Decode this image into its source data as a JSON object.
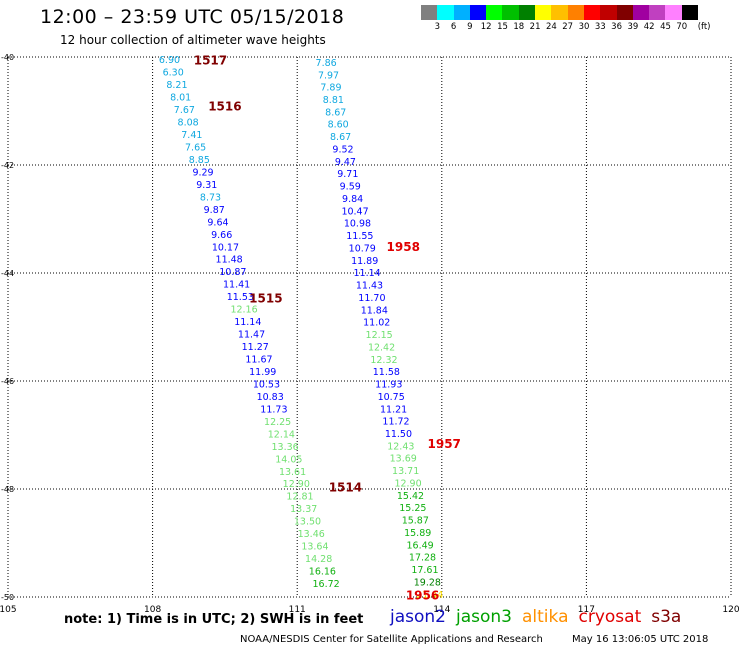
{
  "header": {
    "title": "12:00 – 23:59 UTC 05/15/2018",
    "subtitle": "12 hour collection of altimeter wave heights"
  },
  "colorbar": {
    "unit": "(ft)",
    "colors": [
      "#808080",
      "#00ffff",
      "#00b0ff",
      "#0000ff",
      "#00ff00",
      "#00c000",
      "#008000",
      "#ffff00",
      "#ffc000",
      "#ff8000",
      "#ff0000",
      "#c00000",
      "#800000",
      "#a000a0",
      "#c040c0",
      "#ff80ff",
      "#000000"
    ],
    "labels": [
      "3",
      "6",
      "9",
      "12",
      "15",
      "18",
      "21",
      "24",
      "27",
      "30",
      "33",
      "36",
      "39",
      "42",
      "45",
      "70"
    ]
  },
  "chart_data": {
    "type": "scatter",
    "title": "12:00 – 23:59 UTC 05/15/2018",
    "subtitle": "12 hour collection of altimeter wave heights",
    "xlim": [
      105,
      120
    ],
    "ylim": [
      -50,
      -40
    ],
    "x_ticks": [
      "105",
      "108",
      "111",
      "114",
      "117",
      "120"
    ],
    "y_ticks": [
      "-40",
      "-42",
      "-44",
      "-46",
      "-48",
      "-50"
    ],
    "grid": true,
    "tracks": [
      {
        "values": [
          "6.90",
          "6.30",
          "8.21",
          "8.01",
          "7.67",
          "8.08",
          "7.41",
          "7.65",
          "8.85",
          "9.29",
          "9.31",
          "8.73",
          "9.87",
          "9.64",
          "9.66",
          "10.17",
          "11.48",
          "10.87",
          "11.41",
          "11.53",
          "12.16",
          "11.14",
          "11.47",
          "11.27",
          "11.67",
          "11.99",
          "10.53",
          "10.83",
          "11.73",
          "12.25",
          "12.14",
          "13.36",
          "14.05",
          "13.61",
          "12.90",
          "12.81",
          "13.37",
          "13.50",
          "13.46",
          "13.64",
          "14.28",
          "16.16",
          "16.72"
        ],
        "x_start": 108.35,
        "x_end": 111.6,
        "y_start": -40.05,
        "y_end": -49.75
      },
      {
        "values": [
          "7.86",
          "7.97",
          "7.89",
          "8.81",
          "8.67",
          "8.60",
          "8.67",
          "9.52",
          "9.47",
          "9.71",
          "9.59",
          "9.84",
          "10.47",
          "10.98",
          "11.55",
          "10.79",
          "11.89",
          "11.14",
          "11.43",
          "11.70",
          "11.84",
          "11.02",
          "12.15",
          "12.42",
          "12.32",
          "11.58",
          "11.93",
          "10.75",
          "11.21",
          "11.72",
          "11.50",
          "12.43",
          "13.69",
          "13.71",
          "12.90",
          "15.42",
          "15.25",
          "15.87",
          "15.89",
          "16.49",
          "17.28",
          "17.61",
          "19.28",
          "21.44"
        ],
        "x_start": 111.6,
        "x_end": 113.75,
        "y_start": -40.1,
        "y_end": -49.95
      }
    ],
    "pass_labels": [
      {
        "text": "1517",
        "x": 109.2,
        "y": -40.05
      },
      {
        "text": "1516",
        "x": 109.5,
        "y": -40.9
      },
      {
        "text": "1515",
        "x": 110.35,
        "y": -44.45
      },
      {
        "text": "1514",
        "x": 112.0,
        "y": -47.95
      },
      {
        "text": "1958",
        "x": 113.2,
        "y": -43.5
      },
      {
        "text": "1957",
        "x": 114.05,
        "y": -47.15
      },
      {
        "text": "1956",
        "x": 113.6,
        "y": -49.95
      }
    ]
  },
  "footer": {
    "note": "note: 1) Time is in UTC; 2) SWH is in feet",
    "legend": [
      {
        "label": "jason2",
        "color": "#1010c0"
      },
      {
        "label": "jason3",
        "color": "#00a000"
      },
      {
        "label": "altika",
        "color": "#ff9000"
      },
      {
        "label": "cryosat",
        "color": "#e00000"
      },
      {
        "label": "s3a",
        "color": "#800000"
      }
    ],
    "credit_org": "NOAA/NESDIS Center for Satellite Applications and Research",
    "credit_time": "May 16 13:06:05 UTC 2018"
  }
}
